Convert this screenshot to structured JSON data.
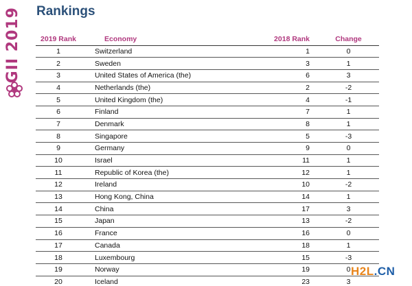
{
  "header": {
    "title": "Rankings",
    "side_logo_text": "GII 2019",
    "logo_color": "#b0387e",
    "title_color": "#2b5079"
  },
  "table": {
    "columns": [
      "2019 Rank",
      "Economy",
      "2018 Rank",
      "Change"
    ],
    "rows": [
      {
        "rank2019": "1",
        "economy": "Switzerland",
        "rank2018": "1",
        "change": "0"
      },
      {
        "rank2019": "2",
        "economy": "Sweden",
        "rank2018": "3",
        "change": "1"
      },
      {
        "rank2019": "3",
        "economy": "United States of America (the)",
        "rank2018": "6",
        "change": "3"
      },
      {
        "rank2019": "4",
        "economy": "Netherlands (the)",
        "rank2018": "2",
        "change": "-2"
      },
      {
        "rank2019": "5",
        "economy": "United Kingdom (the)",
        "rank2018": "4",
        "change": "-1"
      },
      {
        "rank2019": "6",
        "economy": "Finland",
        "rank2018": "7",
        "change": "1"
      },
      {
        "rank2019": "7",
        "economy": "Denmark",
        "rank2018": "8",
        "change": "1"
      },
      {
        "rank2019": "8",
        "economy": "Singapore",
        "rank2018": "5",
        "change": "-3"
      },
      {
        "rank2019": "9",
        "economy": "Germany",
        "rank2018": "9",
        "change": "0"
      },
      {
        "rank2019": "10",
        "economy": "Israel",
        "rank2018": "11",
        "change": "1"
      },
      {
        "rank2019": "11",
        "economy": "Republic of Korea (the)",
        "rank2018": "12",
        "change": "1"
      },
      {
        "rank2019": "12",
        "economy": "Ireland",
        "rank2018": "10",
        "change": "-2"
      },
      {
        "rank2019": "13",
        "economy": "Hong Kong, China",
        "rank2018": "14",
        "change": "1"
      },
      {
        "rank2019": "14",
        "economy": "China",
        "rank2018": "17",
        "change": "3"
      },
      {
        "rank2019": "15",
        "economy": "Japan",
        "rank2018": "13",
        "change": "-2"
      },
      {
        "rank2019": "16",
        "economy": "France",
        "rank2018": "16",
        "change": "0"
      },
      {
        "rank2019": "17",
        "economy": "Canada",
        "rank2018": "18",
        "change": "1"
      },
      {
        "rank2019": "18",
        "economy": "Luxembourg",
        "rank2018": "15",
        "change": "-3"
      },
      {
        "rank2019": "19",
        "economy": "Norway",
        "rank2018": "19",
        "change": "0"
      },
      {
        "rank2019": "20",
        "economy": "Iceland",
        "rank2018": "23",
        "change": "3"
      }
    ]
  },
  "watermark": {
    "part_a": "H2L",
    "part_b": ".CN",
    "color_a": "#e8841a",
    "color_b": "#1f5fa8"
  }
}
